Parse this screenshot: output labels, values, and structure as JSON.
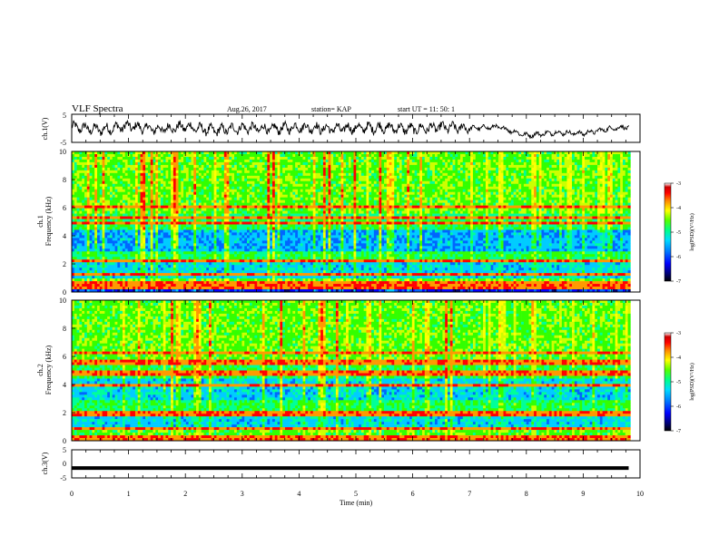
{
  "header": {
    "title": "VLF Spectra",
    "date": "Aug.26, 2017",
    "station": "station= KAP",
    "start": "start  UT =   11: 50: 1"
  },
  "chart_data": [
    {
      "type": "line",
      "panel": "ch1-waveform",
      "ylabel": "ch.1(V)",
      "ylim": [
        -5,
        5
      ],
      "yticks": [
        "5",
        "-5"
      ],
      "x": [
        0,
        0.5,
        1,
        1.5,
        2,
        2.5,
        3,
        3.5,
        4,
        4.5,
        5,
        5.5,
        6,
        6.5,
        7,
        7.5,
        8,
        8.5,
        9,
        9.5,
        9.8
      ],
      "y": [
        0.5,
        -0.5,
        0.8,
        -0.4,
        0.6,
        -0.8,
        0.2,
        -0.3,
        0.5,
        -0.2,
        0.1,
        0.3,
        -0.3,
        0.4,
        0,
        0.5,
        -2.5,
        -1.5,
        -1.8,
        0,
        0.5
      ]
    },
    {
      "type": "heatmap",
      "panel": "ch1-spectrogram",
      "ylabel_top": "ch.1",
      "ylabel": "Frequency (kHz)",
      "ylim": [
        0,
        10
      ],
      "yticks": [
        "0",
        "2",
        "4",
        "6",
        "8",
        "10"
      ],
      "colorbar": {
        "label": "log(PSD)(V²/Hz)",
        "range": [
          -7,
          -3
        ],
        "ticks": [
          "-3",
          "-4",
          "-5",
          "-6",
          "-7"
        ]
      }
    },
    {
      "type": "heatmap",
      "panel": "ch2-spectrogram",
      "ylabel_top": "ch.2",
      "ylabel": "Frequency (kHz)",
      "ylim": [
        0,
        10
      ],
      "yticks": [
        "0",
        "2",
        "4",
        "6",
        "8",
        "10"
      ],
      "colorbar": {
        "label": "log(PSD)(V²/Hz)",
        "range": [
          -7,
          -3
        ],
        "ticks": [
          "-3",
          "-4",
          "-5",
          "-6",
          "-7"
        ]
      }
    },
    {
      "type": "line",
      "panel": "ch3-waveform",
      "ylabel": "ch.3(V)",
      "ylim": [
        -5,
        5
      ],
      "yticks": [
        "5",
        "0",
        "-5"
      ],
      "x": [
        0,
        9.8
      ],
      "y": [
        -1.5,
        -1.5
      ]
    }
  ],
  "xaxis": {
    "label": "Time (min)",
    "xlim": [
      0,
      10
    ],
    "ticks": [
      "0",
      "1",
      "2",
      "3",
      "4",
      "5",
      "6",
      "7",
      "8",
      "9",
      "10"
    ]
  },
  "colors": {
    "colormap": [
      "#000000",
      "#00007a",
      "#0000ff",
      "#0066ff",
      "#00ccff",
      "#00ff99",
      "#33ff00",
      "#ccff00",
      "#ffff00",
      "#ff9900",
      "#ff0000",
      "#cc0000",
      "#ffffff"
    ]
  }
}
